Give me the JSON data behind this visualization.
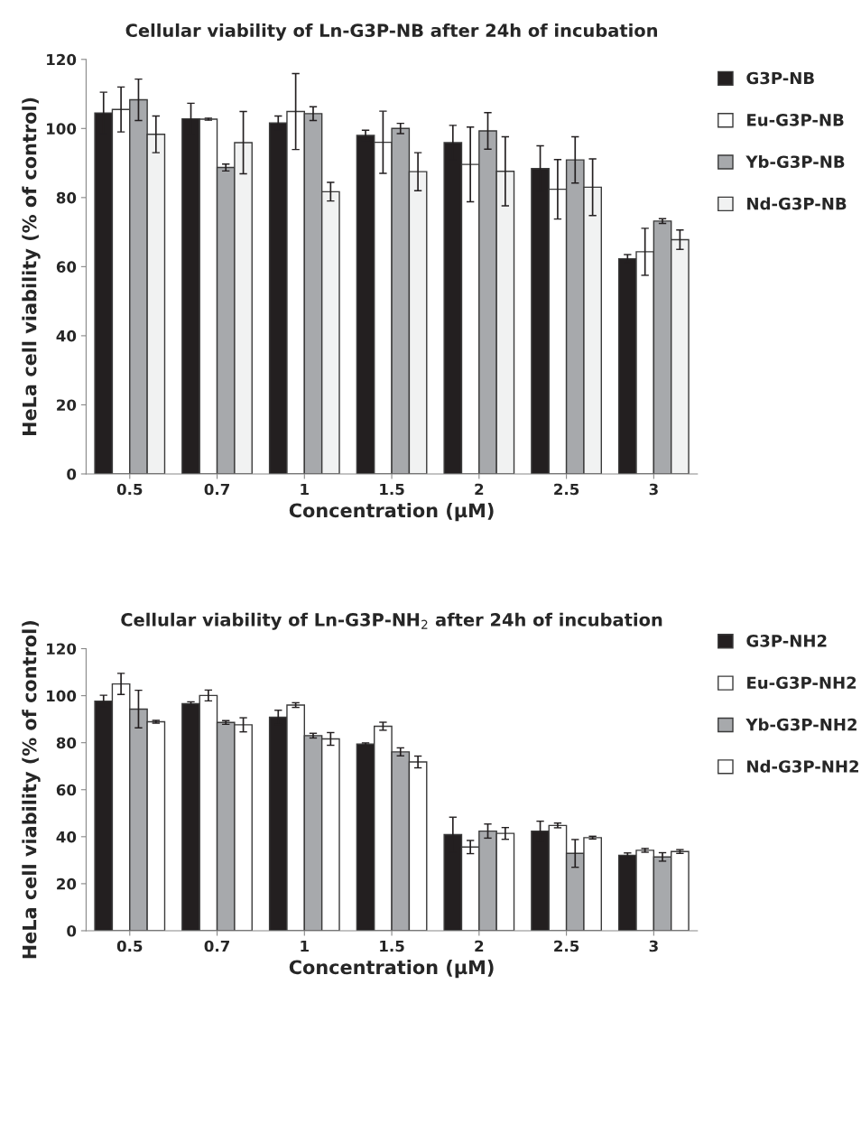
{
  "chart_data": [
    {
      "type": "bar",
      "title": "Cellular viability of Ln-G3P-NB after 24h of incubation",
      "xlabel": "Concentration (µM)",
      "ylabel": "HeLa cell viability (% of control)",
      "categories": [
        "0.5",
        "0.7",
        "1",
        "1.5",
        "2",
        "2.5",
        "3"
      ],
      "ylim": [
        0,
        120
      ],
      "yticks": [
        0,
        20,
        40,
        60,
        80,
        100,
        120
      ],
      "grid": false,
      "legend": "right",
      "series": [
        {
          "name": "G3P-NB",
          "color": "#231f20",
          "values": [
            104.5,
            102.8,
            101.6,
            98,
            95.9,
            88.4,
            62.3
          ],
          "errors": [
            6,
            4.5,
            2,
            1.5,
            5,
            6.6,
            1.2
          ]
        },
        {
          "name": "Eu-G3P-NB",
          "color": "#ffffff",
          "values": [
            105.5,
            102.7,
            104.9,
            96,
            89.6,
            82.4,
            64.3
          ],
          "errors": [
            6.5,
            0.3,
            11,
            9,
            10.8,
            8.6,
            6.8
          ]
        },
        {
          "name": "Yb-G3P-NB",
          "color": "#a7a9ac",
          "values": [
            108.3,
            88.7,
            104.3,
            100,
            99.3,
            90.9,
            73.2
          ],
          "errors": [
            6,
            1,
            2,
            1.5,
            5.3,
            6.7,
            0.7
          ]
        },
        {
          "name": "Nd-G3P-NB",
          "color": "#f1f2f2",
          "values": [
            98.3,
            95.9,
            81.7,
            87.5,
            87.6,
            83.0,
            67.8
          ],
          "errors": [
            5.3,
            9,
            2.7,
            5.5,
            10,
            8.2,
            2.8
          ]
        }
      ]
    },
    {
      "type": "bar",
      "title": "Cellular viability of Ln-G3P-NH$_{2}$ after 24h of incubation",
      "xlabel": "Concentration (µM)",
      "ylabel": "HeLa cell viability (% of control)",
      "categories": [
        "0.5",
        "0.7",
        "1",
        "1.5",
        "2",
        "2.5",
        "3"
      ],
      "ylim": [
        0,
        120
      ],
      "yticks": [
        0,
        20,
        40,
        60,
        80,
        100,
        120
      ],
      "grid": false,
      "legend": "right",
      "series": [
        {
          "name": "G3P-NH2",
          "color": "#231f20",
          "values": [
            97.7,
            96.6,
            90.8,
            79.4,
            40.9,
            42.4,
            32.1
          ],
          "errors": [
            2.5,
            0.8,
            3,
            0.5,
            7.4,
            4.2,
            1
          ]
        },
        {
          "name": "Eu-G3P-NH2",
          "color": "#ffffff",
          "values": [
            105,
            100.1,
            96,
            87,
            35.6,
            44.8,
            34.2
          ],
          "errors": [
            4.5,
            2.3,
            1,
            1.7,
            2.8,
            1,
            0.8
          ]
        },
        {
          "name": "Yb-G3P-NH2",
          "color": "#a7a9ac",
          "values": [
            94.3,
            88.6,
            83,
            76.1,
            42.4,
            32.9,
            31.4
          ],
          "errors": [
            8,
            0.8,
            1,
            1.7,
            3,
            5.9,
            1.8
          ]
        },
        {
          "name": "Nd-G3P-NH2",
          "color": "#ffffff",
          "values": [
            88.9,
            87.6,
            81.6,
            71.8,
            41.4,
            39.6,
            33.7
          ],
          "errors": [
            0.6,
            3,
            2.7,
            2.5,
            2.5,
            0.6,
            0.8
          ]
        }
      ]
    }
  ]
}
